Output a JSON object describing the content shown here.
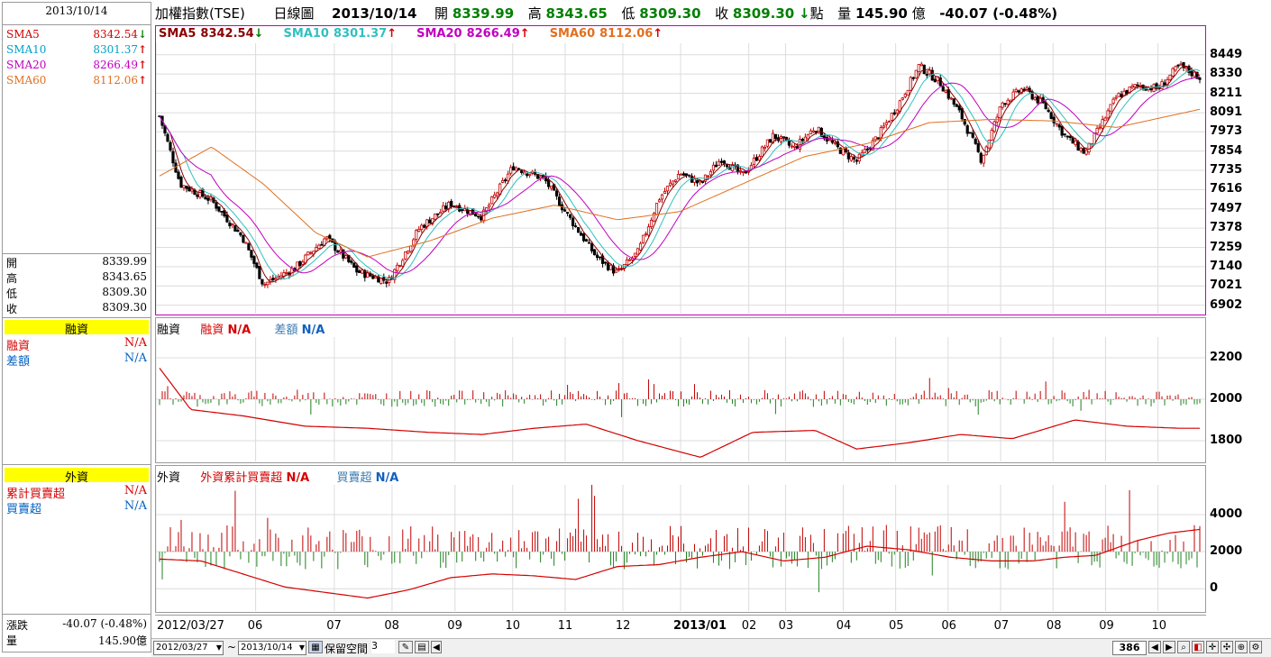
{
  "left": {
    "date": "2013/10/14",
    "sma": [
      {
        "label": "SMA5",
        "value": "8342.54",
        "dir": "down",
        "color": "#d40000"
      },
      {
        "label": "SMA10",
        "value": "8301.37",
        "dir": "up",
        "color": "#00a0c8"
      },
      {
        "label": "SMA20",
        "value": "8266.49",
        "dir": "up",
        "color": "#c000c0"
      },
      {
        "label": "SMA60",
        "value": "8112.06",
        "dir": "up",
        "color": "#e07020"
      }
    ],
    "ohlc": [
      {
        "k": "開",
        "v": "8339.99"
      },
      {
        "k": "高",
        "v": "8343.65"
      },
      {
        "k": "低",
        "v": "8309.30"
      },
      {
        "k": "收",
        "v": "8309.30"
      }
    ],
    "margin_title": "融資",
    "margin_rows": [
      {
        "k": "融資",
        "v": "N/A",
        "color": "#d40000"
      },
      {
        "k": "差額",
        "v": "N/A",
        "color": "#0060c0"
      }
    ],
    "foreign_title": "外資",
    "foreign_rows": [
      {
        "k": "累計買賣超",
        "v": "N/A",
        "color": "#d40000"
      },
      {
        "k": "買賣超",
        "v": "N/A",
        "color": "#0060c0"
      }
    ],
    "change_label": "漲跌",
    "change_value": "-40.07 (-0.48%)",
    "vol_label": "量",
    "vol_value": "145.90億"
  },
  "header": {
    "index": "加權指數(TSE)",
    "period": "日線圖",
    "date": "2013/10/14",
    "open_label": "開",
    "open": "8339.99",
    "high_label": "高",
    "high": "8343.65",
    "low_label": "低",
    "low": "8309.30",
    "close_label": "收",
    "close": "8309.30",
    "change_arrow": "↓",
    "points": "點",
    "vol_label": "量",
    "vol": "145.90",
    "vol_unit": "億",
    "change": "-40.07 (-0.48%)"
  },
  "legend_main": [
    {
      "label": "SMA5",
      "value": "8342.54",
      "arrow": "↓",
      "color": "#8b0000",
      "arrow_color": "#008000"
    },
    {
      "label": "SMA10",
      "value": "8301.37",
      "arrow": "↑",
      "color": "#30c0c0",
      "arrow_color": "#d40000"
    },
    {
      "label": "SMA20",
      "value": "8266.49",
      "arrow": "↑",
      "color": "#c000c0",
      "arrow_color": "#d40000"
    },
    {
      "label": "SMA60",
      "value": "8112.06",
      "arrow": "↑",
      "color": "#e07020",
      "arrow_color": "#d40000"
    }
  ],
  "legend_margin": {
    "title": "融資",
    "a": "融資",
    "a_val": "N/A",
    "b": "差額",
    "b_val": "N/A"
  },
  "legend_foreign": {
    "title": "外資",
    "a": "外資累計買賣超",
    "a_val": "N/A",
    "b": "買賣超",
    "b_val": "N/A"
  },
  "chart_data": [
    {
      "type": "candlestick",
      "title": "加權指數(TSE) 日線圖",
      "y_ticks": [
        "8449",
        "8330",
        "8211",
        "8091",
        "7973",
        "7854",
        "7735",
        "7616",
        "7497",
        "7378",
        "7259",
        "7140",
        "7021",
        "6902"
      ],
      "ylim": [
        6850,
        8520
      ],
      "x_ticks": [
        "2012/03/27",
        "06",
        "07",
        "08",
        "09",
        "10",
        "11",
        "12",
        "2013/01",
        "02",
        "03",
        "04",
        "05",
        "06",
        "07",
        "08",
        "09",
        "10"
      ],
      "series": [
        {
          "name": "SMA5",
          "color": "#8b0000"
        },
        {
          "name": "SMA10",
          "color": "#30c0c0"
        },
        {
          "name": "SMA20",
          "color": "#c000c0"
        },
        {
          "name": "SMA60",
          "color": "#e07020"
        }
      ],
      "close_path": [
        [
          0,
          8070
        ],
        [
          0.02,
          7650
        ],
        [
          0.05,
          7550
        ],
        [
          0.08,
          7320
        ],
        [
          0.1,
          7030
        ],
        [
          0.13,
          7130
        ],
        [
          0.16,
          7320
        ],
        [
          0.19,
          7110
        ],
        [
          0.22,
          7050
        ],
        [
          0.25,
          7380
        ],
        [
          0.28,
          7530
        ],
        [
          0.31,
          7450
        ],
        [
          0.34,
          7760
        ],
        [
          0.37,
          7680
        ],
        [
          0.39,
          7480
        ],
        [
          0.42,
          7200
        ],
        [
          0.44,
          7100
        ],
        [
          0.46,
          7230
        ],
        [
          0.48,
          7560
        ],
        [
          0.5,
          7720
        ],
        [
          0.52,
          7650
        ],
        [
          0.54,
          7810
        ],
        [
          0.56,
          7700
        ],
        [
          0.59,
          7950
        ],
        [
          0.61,
          7870
        ],
        [
          0.63,
          8000
        ],
        [
          0.65,
          7880
        ],
        [
          0.67,
          7790
        ],
        [
          0.69,
          7940
        ],
        [
          0.71,
          8140
        ],
        [
          0.73,
          8380
        ],
        [
          0.75,
          8280
        ],
        [
          0.77,
          8080
        ],
        [
          0.79,
          7800
        ],
        [
          0.81,
          8150
        ],
        [
          0.83,
          8240
        ],
        [
          0.85,
          8140
        ],
        [
          0.87,
          7950
        ],
        [
          0.89,
          7840
        ],
        [
          0.92,
          8190
        ],
        [
          0.94,
          8260
        ],
        [
          0.96,
          8240
        ],
        [
          0.98,
          8380
        ],
        [
          1.0,
          8309
        ]
      ],
      "sma60_path": [
        [
          0,
          7700
        ],
        [
          0.05,
          7880
        ],
        [
          0.1,
          7650
        ],
        [
          0.15,
          7350
        ],
        [
          0.2,
          7200
        ],
        [
          0.26,
          7300
        ],
        [
          0.32,
          7440
        ],
        [
          0.38,
          7520
        ],
        [
          0.44,
          7430
        ],
        [
          0.5,
          7480
        ],
        [
          0.56,
          7650
        ],
        [
          0.62,
          7820
        ],
        [
          0.68,
          7900
        ],
        [
          0.74,
          8030
        ],
        [
          0.8,
          8050
        ],
        [
          0.86,
          8040
        ],
        [
          0.92,
          8000
        ],
        [
          1.0,
          8112
        ]
      ]
    },
    {
      "type": "bar",
      "title": "融資",
      "y_ticks": [
        "2200",
        "2000",
        "1800"
      ],
      "ylim": [
        1700,
        2300
      ],
      "line_path": [
        [
          0,
          2150
        ],
        [
          0.03,
          1950
        ],
        [
          0.08,
          1920
        ],
        [
          0.14,
          1870
        ],
        [
          0.2,
          1860
        ],
        [
          0.26,
          1840
        ],
        [
          0.31,
          1830
        ],
        [
          0.36,
          1860
        ],
        [
          0.41,
          1880
        ],
        [
          0.46,
          1800
        ],
        [
          0.52,
          1720
        ],
        [
          0.57,
          1840
        ],
        [
          0.63,
          1850
        ],
        [
          0.67,
          1760
        ],
        [
          0.72,
          1790
        ],
        [
          0.77,
          1830
        ],
        [
          0.82,
          1810
        ],
        [
          0.88,
          1900
        ],
        [
          0.93,
          1870
        ],
        [
          0.98,
          1860
        ],
        [
          1.0,
          1860
        ]
      ]
    },
    {
      "type": "bar",
      "title": "外資",
      "y_ticks": [
        "4000",
        "2000",
        "0"
      ],
      "ylim": [
        -1200,
        5600
      ],
      "line_path": [
        [
          0,
          1600
        ],
        [
          0.04,
          1500
        ],
        [
          0.08,
          800
        ],
        [
          0.12,
          100
        ],
        [
          0.16,
          -200
        ],
        [
          0.2,
          -500
        ],
        [
          0.24,
          -50
        ],
        [
          0.28,
          600
        ],
        [
          0.32,
          800
        ],
        [
          0.36,
          700
        ],
        [
          0.4,
          500
        ],
        [
          0.44,
          1200
        ],
        [
          0.48,
          1300
        ],
        [
          0.52,
          1700
        ],
        [
          0.56,
          2000
        ],
        [
          0.6,
          1500
        ],
        [
          0.64,
          1700
        ],
        [
          0.68,
          2300
        ],
        [
          0.72,
          2100
        ],
        [
          0.76,
          1700
        ],
        [
          0.8,
          1500
        ],
        [
          0.84,
          1500
        ],
        [
          0.87,
          1700
        ],
        [
          0.9,
          1800
        ],
        [
          0.94,
          2600
        ],
        [
          0.97,
          3000
        ],
        [
          1.0,
          3200
        ]
      ]
    }
  ],
  "footer": {
    "start_date": "2012/03/27",
    "tilde": "~",
    "end_date": "2013/10/14",
    "reserve_label": "保留空間",
    "reserve_value": "3",
    "count": "386"
  }
}
